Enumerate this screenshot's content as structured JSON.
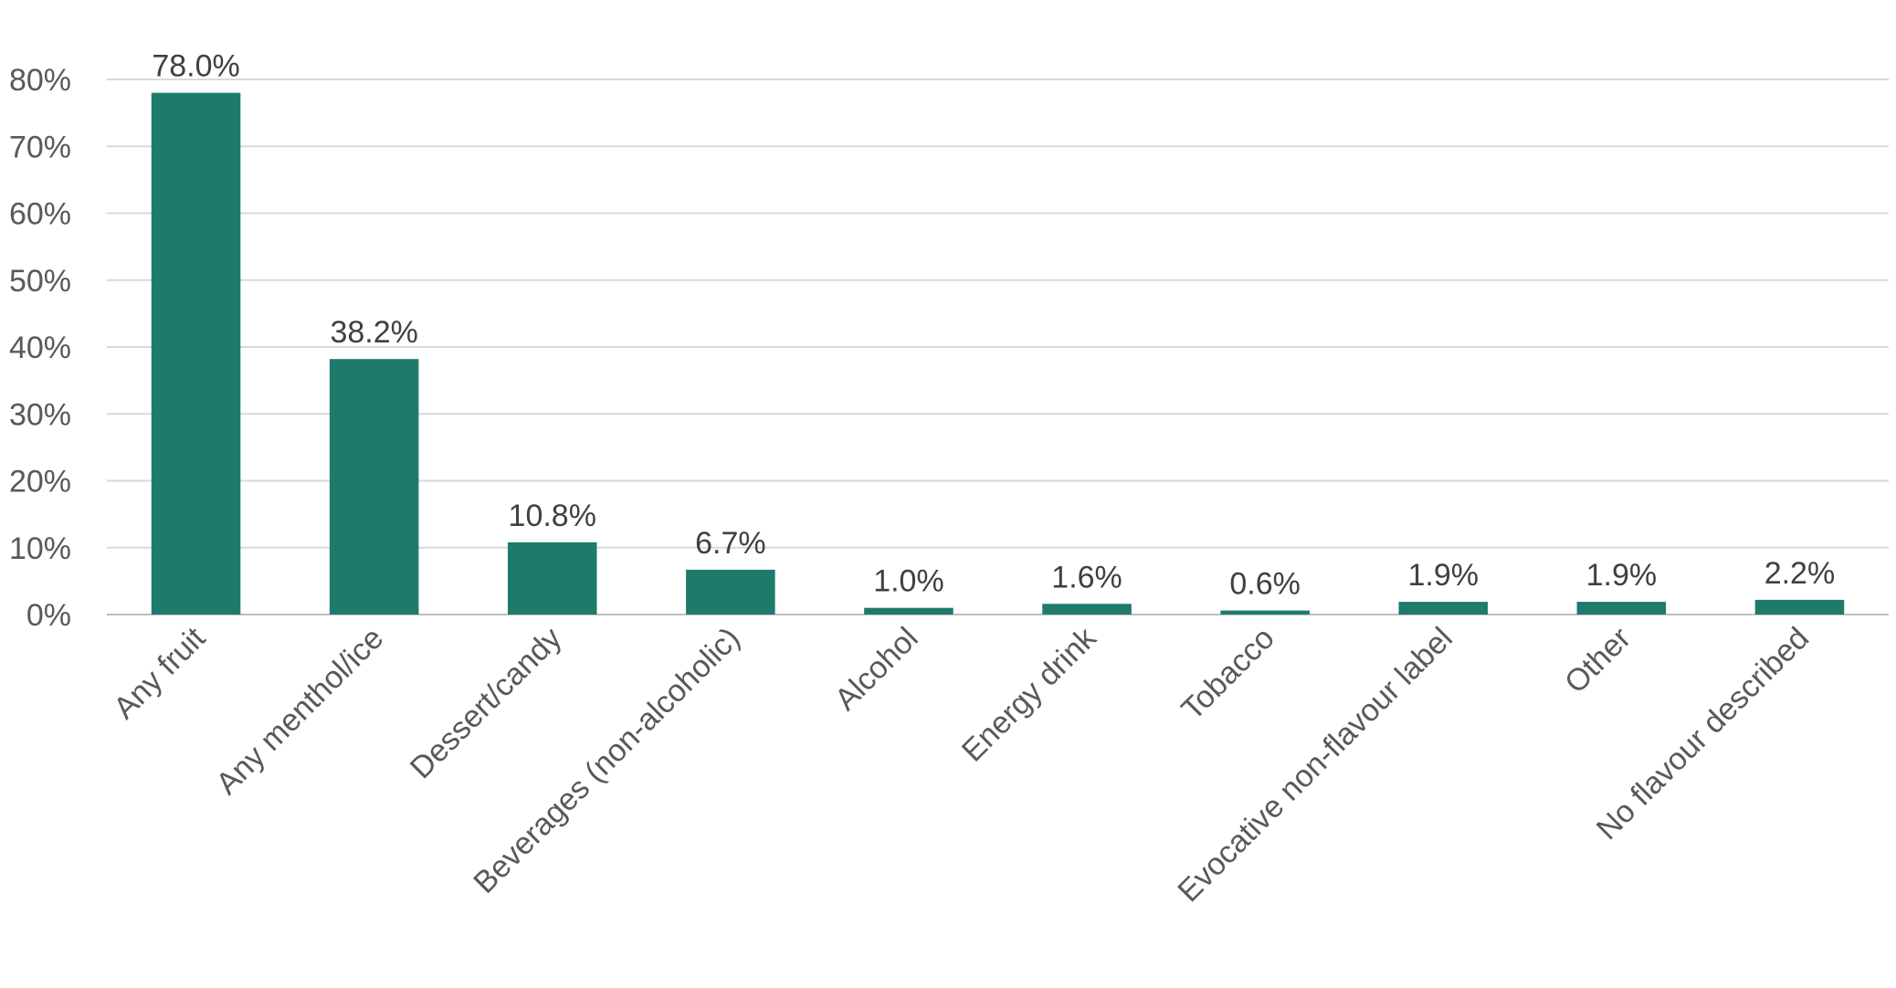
{
  "chart_data": {
    "type": "bar",
    "categories": [
      "Any fruit",
      "Any menthol/ice",
      "Dessert/candy",
      "Beverages (non-alcoholic)",
      "Alcohol",
      "Energy drink",
      "Tobacco",
      "Evocative non-flavour label",
      "Other",
      "No flavour described"
    ],
    "values": [
      78.0,
      38.2,
      10.8,
      6.7,
      1.0,
      1.6,
      0.6,
      1.9,
      1.9,
      2.2
    ],
    "data_labels": [
      "78.0%",
      "38.2%",
      "10.8%",
      "6.7%",
      "1.0%",
      "1.6%",
      "0.6%",
      "1.9%",
      "1.9%",
      "2.2%"
    ],
    "y_ticks": [
      0,
      10,
      20,
      30,
      40,
      50,
      60,
      70,
      80
    ],
    "y_tick_labels": [
      "0%",
      "10%",
      "20%",
      "30%",
      "40%",
      "50%",
      "60%",
      "70%",
      "80%"
    ],
    "ylim": [
      0,
      80
    ],
    "title": "",
    "xlabel": "",
    "ylabel": "",
    "grid": true,
    "legend": "none",
    "colors": {
      "bar": "#1e7b6c",
      "gridline": "#d9d9d9",
      "tick_text": "#595959",
      "label_text": "#404040"
    }
  }
}
